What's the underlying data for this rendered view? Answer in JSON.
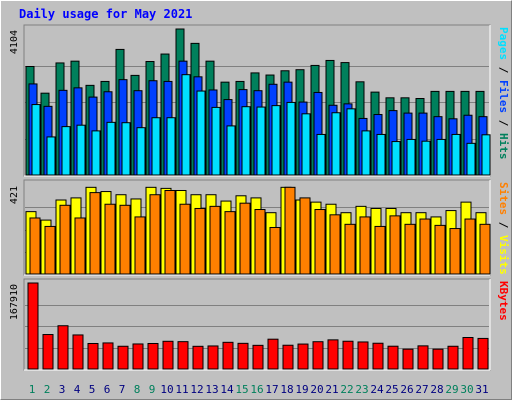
{
  "chart_data": [
    {
      "type": "bar",
      "title": "Daily usage for May 2021",
      "categories": [
        "1",
        "2",
        "3",
        "4",
        "5",
        "6",
        "7",
        "8",
        "9",
        "10",
        "11",
        "12",
        "13",
        "14",
        "15",
        "16",
        "17",
        "18",
        "19",
        "20",
        "21",
        "22",
        "23",
        "24",
        "25",
        "26",
        "27",
        "28",
        "29",
        "30",
        "31"
      ],
      "weekend_days": [
        "1",
        "2",
        "8",
        "9",
        "15",
        "16",
        "22",
        "23",
        "29",
        "30"
      ],
      "ymax_label": "4104",
      "ymax": 4104,
      "series": [
        {
          "name": "Hits",
          "color": "#00805c",
          "values": [
            3050,
            2300,
            3150,
            3200,
            2520,
            2630,
            3530,
            2800,
            3190,
            3400,
            4104,
            3700,
            3200,
            2610,
            2630,
            2870,
            2810,
            2930,
            2960,
            3080,
            3220,
            3160,
            2620,
            2330,
            2170,
            2170,
            2150,
            2350,
            2350,
            2350,
            2350
          ]
        },
        {
          "name": "Files",
          "color": "#0040ff",
          "values": [
            2560,
            1930,
            2380,
            2450,
            2190,
            2340,
            2680,
            2370,
            2650,
            2630,
            3200,
            2760,
            2390,
            2120,
            2400,
            2370,
            2550,
            2610,
            2050,
            2320,
            1960,
            2000,
            1590,
            1700,
            1810,
            1740,
            1740,
            1640,
            1580,
            1680,
            1640
          ]
        },
        {
          "name": "Pages",
          "color": "#00e0ff",
          "values": [
            1980,
            1070,
            1360,
            1400,
            1240,
            1480,
            1470,
            1330,
            1610,
            1610,
            2820,
            2360,
            1900,
            1380,
            1920,
            1910,
            1950,
            2040,
            1720,
            1140,
            1750,
            1860,
            1240,
            1140,
            940,
            1000,
            950,
            1000,
            1140,
            890,
            1130
          ]
        }
      ]
    },
    {
      "type": "bar",
      "categories": [
        "1",
        "2",
        "3",
        "4",
        "5",
        "6",
        "7",
        "8",
        "9",
        "10",
        "11",
        "12",
        "13",
        "14",
        "15",
        "16",
        "17",
        "18",
        "19",
        "20",
        "21",
        "22",
        "23",
        "24",
        "25",
        "26",
        "27",
        "28",
        "29",
        "30",
        "31"
      ],
      "ymax_label": "421",
      "ymax": 421,
      "series": [
        {
          "name": "Visits",
          "color": "#ffff00",
          "values": [
            295,
            255,
            350,
            360,
            410,
            390,
            375,
            355,
            410,
            405,
            395,
            375,
            375,
            345,
            370,
            360,
            290,
            410,
            350,
            340,
            330,
            290,
            320,
            310,
            310,
            290,
            290,
            270,
            300,
            340,
            290
          ]
        },
        {
          "name": "Sites",
          "color": "#ff8000",
          "values": [
            265,
            225,
            325,
            265,
            385,
            330,
            325,
            270,
            375,
            395,
            330,
            310,
            320,
            295,
            335,
            305,
            220,
            410,
            360,
            305,
            280,
            235,
            270,
            225,
            275,
            235,
            260,
            230,
            215,
            260,
            235
          ]
        }
      ]
    },
    {
      "type": "bar",
      "categories": [
        "1",
        "2",
        "3",
        "4",
        "5",
        "6",
        "7",
        "8",
        "9",
        "10",
        "11",
        "12",
        "13",
        "14",
        "15",
        "16",
        "17",
        "18",
        "19",
        "20",
        "21",
        "22",
        "23",
        "24",
        "25",
        "26",
        "27",
        "28",
        "29",
        "30",
        "31"
      ],
      "ymax_label": "167910",
      "ymax": 167910,
      "series": [
        {
          "name": "KBytes",
          "color": "#ff0000",
          "values": [
            167910,
            67300,
            84500,
            66500,
            49800,
            50900,
            44400,
            48900,
            49800,
            54100,
            53400,
            44300,
            45000,
            52100,
            50100,
            46200,
            58200,
            46400,
            48700,
            53300,
            56900,
            54200,
            52800,
            50300,
            44500,
            38700,
            45200,
            38700,
            44400,
            61500,
            59700
          ]
        }
      ]
    }
  ],
  "legend": {
    "panel1": [
      {
        "text": "Pages",
        "color": "#00e0ff"
      },
      {
        "text": " / ",
        "color": "#000000"
      },
      {
        "text": "Files",
        "color": "#0040ff"
      },
      {
        "text": " / ",
        "color": "#000000"
      },
      {
        "text": "Hits",
        "color": "#00805c"
      }
    ],
    "panel2": [
      {
        "text": "Sites",
        "color": "#ff8000"
      },
      {
        "text": " / ",
        "color": "#000000"
      },
      {
        "text": "Visits",
        "color": "#ffff00"
      }
    ],
    "panel3": [
      {
        "text": "KBytes",
        "color": "#ff0000"
      }
    ]
  },
  "colors": {
    "background": "#c0c0c0",
    "title": "#0000ff",
    "weekday_label": "#000080",
    "weekend_label": "#00805c",
    "gridline": "#808080"
  }
}
